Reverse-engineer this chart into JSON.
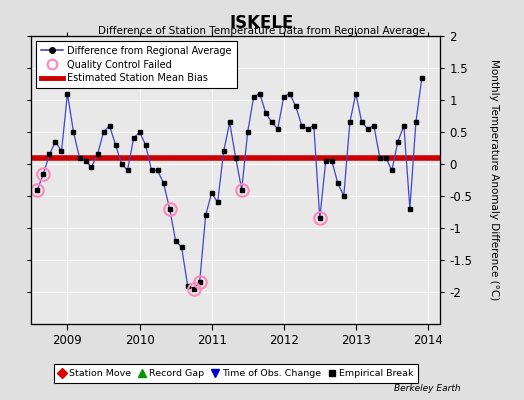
{
  "title": "ISKELE",
  "subtitle": "Difference of Station Temperature Data from Regional Average",
  "ylabel": "Monthly Temperature Anomaly Difference (°C)",
  "bias": 0.1,
  "xlim": [
    2008.5,
    2014.17
  ],
  "ylim": [
    -2.5,
    2.0
  ],
  "yticks": [
    -2.0,
    -1.5,
    -1.0,
    -0.5,
    0.0,
    0.5,
    1.0,
    1.5,
    2.0
  ],
  "xticks": [
    2009,
    2010,
    2011,
    2012,
    2013,
    2014
  ],
  "bg_color": "#e0e0e0",
  "axes_bg": "#e8e8e8",
  "line_color": "#4444cc",
  "bias_color": "#cc0000",
  "qc_fail_color": "#ff88bb",
  "data": [
    [
      2008.583,
      -0.4
    ],
    [
      2008.667,
      -0.15
    ],
    [
      2008.75,
      0.15
    ],
    [
      2008.833,
      0.35
    ],
    [
      2008.917,
      0.2
    ],
    [
      2009.0,
      1.1
    ],
    [
      2009.083,
      0.5
    ],
    [
      2009.167,
      0.1
    ],
    [
      2009.25,
      0.05
    ],
    [
      2009.333,
      -0.05
    ],
    [
      2009.417,
      0.15
    ],
    [
      2009.5,
      0.5
    ],
    [
      2009.583,
      0.6
    ],
    [
      2009.667,
      0.3
    ],
    [
      2009.75,
      0.0
    ],
    [
      2009.833,
      -0.1
    ],
    [
      2009.917,
      0.4
    ],
    [
      2010.0,
      0.5
    ],
    [
      2010.083,
      0.3
    ],
    [
      2010.167,
      -0.1
    ],
    [
      2010.25,
      -0.1
    ],
    [
      2010.333,
      -0.3
    ],
    [
      2010.417,
      -0.7
    ],
    [
      2010.5,
      -1.2
    ],
    [
      2010.583,
      -1.3
    ],
    [
      2010.667,
      -1.9
    ],
    [
      2010.75,
      -1.95
    ],
    [
      2010.833,
      -1.85
    ],
    [
      2010.917,
      -0.8
    ],
    [
      2011.0,
      -0.45
    ],
    [
      2011.083,
      -0.6
    ],
    [
      2011.167,
      0.2
    ],
    [
      2011.25,
      0.65
    ],
    [
      2011.333,
      0.1
    ],
    [
      2011.417,
      -0.4
    ],
    [
      2011.5,
      0.5
    ],
    [
      2011.583,
      1.05
    ],
    [
      2011.667,
      1.1
    ],
    [
      2011.75,
      0.8
    ],
    [
      2011.833,
      0.65
    ],
    [
      2011.917,
      0.55
    ],
    [
      2012.0,
      1.05
    ],
    [
      2012.083,
      1.1
    ],
    [
      2012.167,
      0.9
    ],
    [
      2012.25,
      0.6
    ],
    [
      2012.333,
      0.55
    ],
    [
      2012.417,
      0.6
    ],
    [
      2012.5,
      -0.85
    ],
    [
      2012.583,
      0.05
    ],
    [
      2012.667,
      0.05
    ],
    [
      2012.75,
      -0.3
    ],
    [
      2012.833,
      -0.5
    ],
    [
      2012.917,
      0.65
    ],
    [
      2013.0,
      1.1
    ],
    [
      2013.083,
      0.65
    ],
    [
      2013.167,
      0.55
    ],
    [
      2013.25,
      0.6
    ],
    [
      2013.333,
      0.1
    ],
    [
      2013.417,
      0.1
    ],
    [
      2013.5,
      -0.1
    ],
    [
      2013.583,
      0.35
    ],
    [
      2013.667,
      0.6
    ],
    [
      2013.75,
      -0.7
    ],
    [
      2013.833,
      0.65
    ],
    [
      2013.917,
      1.35
    ]
  ],
  "qc_fail_points": [
    [
      2008.583,
      -0.4
    ],
    [
      2008.667,
      -0.15
    ],
    [
      2010.417,
      -0.7
    ],
    [
      2010.75,
      -1.95
    ],
    [
      2010.833,
      -1.85
    ],
    [
      2011.417,
      -0.4
    ],
    [
      2012.5,
      -0.85
    ]
  ],
  "footnote": "Berkeley Earth"
}
